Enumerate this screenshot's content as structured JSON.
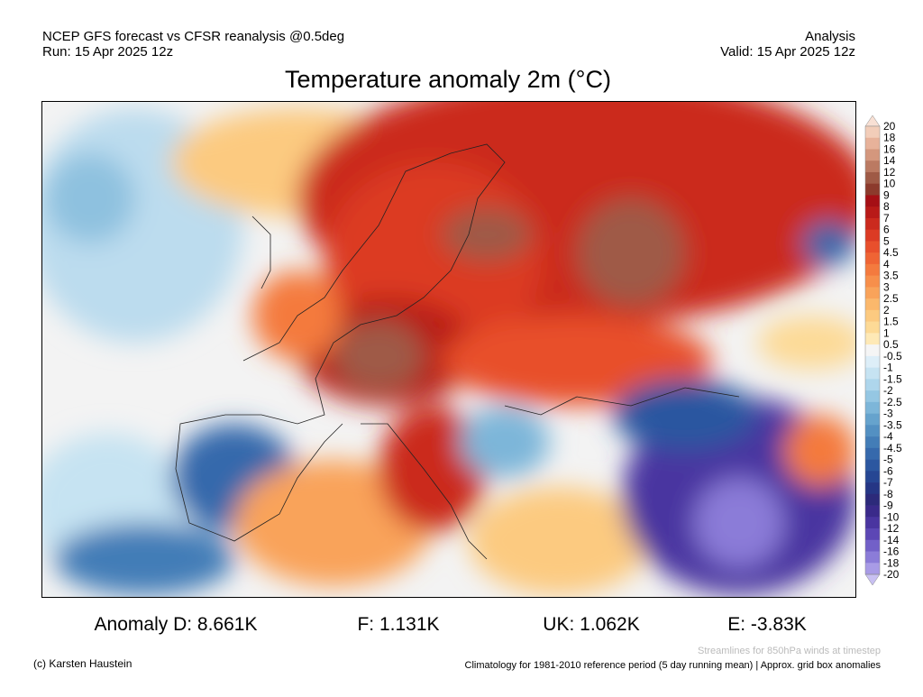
{
  "header": {
    "left": [
      "NCEP GFS forecast vs CFSR reanalysis @0.5deg",
      "Run: 15 Apr 2025 12z"
    ],
    "right": [
      "Analysis",
      "Valid: 15 Apr 2025 12z"
    ]
  },
  "title": "Temperature anomaly 2m (°C)",
  "colorbar": {
    "labels": [
      20,
      18,
      16,
      14,
      12,
      10,
      9,
      8,
      7,
      6,
      5,
      4.5,
      4,
      3.5,
      3,
      2.5,
      2,
      1.5,
      1,
      0.5,
      -0.5,
      -1,
      -1.5,
      -2,
      -2.5,
      -3,
      -3.5,
      -4,
      -4.5,
      -5,
      -6,
      -7,
      -8,
      -9,
      -10,
      -12,
      -14,
      -16,
      -18,
      -20
    ],
    "colors": [
      "#f8e0d4",
      "#f2cdb9",
      "#e7b29a",
      "#d4977d",
      "#bb7a62",
      "#9f5a46",
      "#8c3a2c",
      "#a50f15",
      "#b81a18",
      "#cb2a1e",
      "#dc3b24",
      "#e84f2c",
      "#ef6434",
      "#f47a3e",
      "#f78f4b",
      "#f9a35a",
      "#fbb86c",
      "#fcca80",
      "#fdda96",
      "#fee9b6",
      "#f5f5f5",
      "#ddeef8",
      "#c6e3f2",
      "#aed6ec",
      "#95c7e3",
      "#7db6d9",
      "#66a3cd",
      "#5390c2",
      "#437db7",
      "#3669ac",
      "#2c57a0",
      "#264693",
      "#253685",
      "#2c2a7a",
      "#3a2a8a",
      "#4a35a0",
      "#5c47b5",
      "#7260c8",
      "#8b7cd8",
      "#a89be6",
      "#c8c0f2"
    ]
  },
  "anomalies": [
    "Anomaly D: 8.661K",
    "F: 1.131K",
    "UK: 1.062K",
    "E: -3.83K"
  ],
  "footer": {
    "credit": "(c) Karsten Haustein",
    "streamlines": "Streamlines for 850hPa winds at timestep",
    "climatology": "Climatology for 1981-2010 reference period (5 day running mean) | Approx. grid box anomalies"
  }
}
